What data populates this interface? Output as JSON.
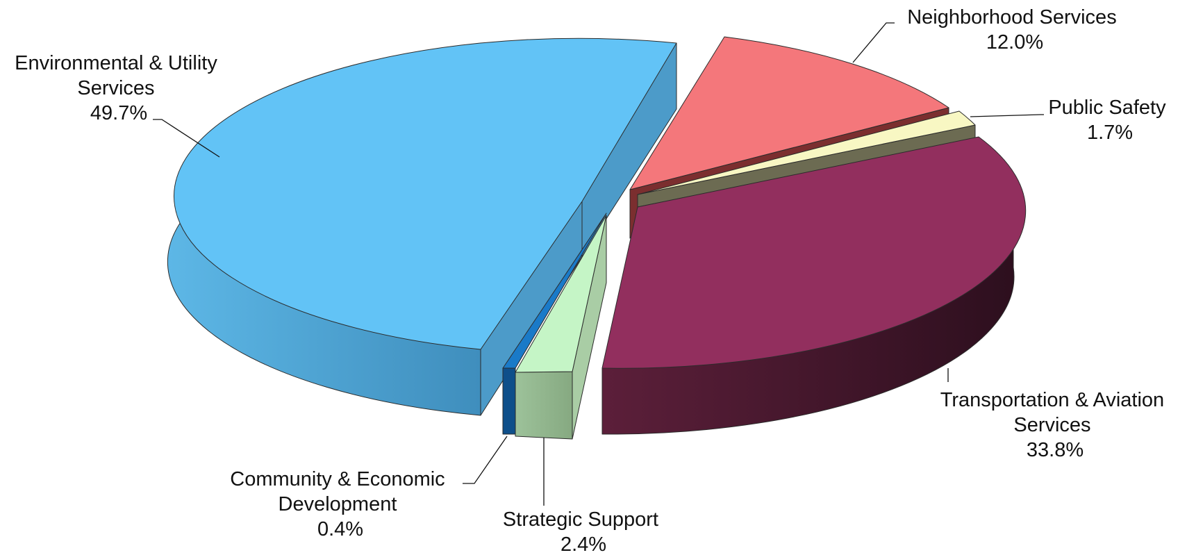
{
  "chart_data": {
    "type": "pie",
    "variant": "3d-exploded",
    "title": "",
    "slices": [
      {
        "label_lines": [
          "Environmental & Utility",
          "Services"
        ],
        "value": 49.7,
        "value_text": "49.7%",
        "color": "#62C3F6"
      },
      {
        "label_lines": [
          "Neighborhood Services"
        ],
        "value": 12.0,
        "value_text": "12.0%",
        "color": "#F4777B"
      },
      {
        "label_lines": [
          "Public Safety"
        ],
        "value": 1.7,
        "value_text": "1.7%",
        "color": "#F8F7C3"
      },
      {
        "label_lines": [
          "Transportation & Aviation",
          "Services"
        ],
        "value": 33.8,
        "value_text": "33.8%",
        "color": "#922F5E"
      },
      {
        "label_lines": [
          "Strategic Support"
        ],
        "value": 2.4,
        "value_text": "2.4%",
        "color": "#C5F5C6"
      },
      {
        "label_lines": [
          "Community & Economic",
          "Development"
        ],
        "value": 0.4,
        "value_text": "0.4%",
        "color": "#1A7AC8"
      }
    ],
    "legend": "none",
    "data_labels": "outside-with-leader-lines"
  }
}
